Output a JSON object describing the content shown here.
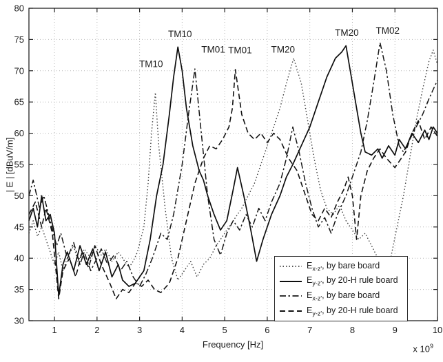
{
  "chart_data": {
    "type": "line",
    "title": "",
    "xlabel": "Frequency [Hz]",
    "x_multiplier_base": "x 10",
    "x_multiplier_exp": "9",
    "ylabel": "| E | [dBuV/m]",
    "xlim": [
      0.4,
      10
    ],
    "ylim": [
      30,
      80
    ],
    "xticks": [
      1,
      2,
      3,
      4,
      5,
      6,
      7,
      8,
      9,
      10
    ],
    "yticks": [
      30,
      35,
      40,
      45,
      50,
      55,
      60,
      65,
      70,
      75,
      80
    ],
    "grid": true,
    "legend_position": "bottom-right",
    "line_color": "#151515",
    "grid_color": "#b8b8b8",
    "annotations": [
      {
        "text": "TM10",
        "x": 3.27,
        "y": 70.6
      },
      {
        "text": "TM10",
        "x": 3.95,
        "y": 75.4
      },
      {
        "text": "TM01",
        "x": 4.73,
        "y": 72.9
      },
      {
        "text": "TM01",
        "x": 5.36,
        "y": 72.8
      },
      {
        "text": "TM20",
        "x": 6.37,
        "y": 72.9
      },
      {
        "text": "TM20",
        "x": 7.87,
        "y": 75.6
      },
      {
        "text": "TM02",
        "x": 8.83,
        "y": 75.9
      }
    ],
    "series": [
      {
        "name": "E_x-z', by bare board",
        "legend_pre": "E",
        "legend_sub": "x-z'",
        "legend_suffix": ", by bare board",
        "style": "dotted",
        "x": [
          0.4,
          0.5,
          0.6,
          0.7,
          0.85,
          1.0,
          1.1,
          1.2,
          1.3,
          1.45,
          1.55,
          1.7,
          1.85,
          1.95,
          2.1,
          2.2,
          2.35,
          2.5,
          2.6,
          2.75,
          2.85,
          2.95,
          3.1,
          3.2,
          3.28,
          3.37,
          3.45,
          3.6,
          3.75,
          3.9,
          4.05,
          4.2,
          4.35,
          4.5,
          4.65,
          4.8,
          4.95,
          5.1,
          5.25,
          5.4,
          5.55,
          5.7,
          5.85,
          6.0,
          6.15,
          6.3,
          6.45,
          6.62,
          6.8,
          6.95,
          7.1,
          7.25,
          7.4,
          7.55,
          7.7,
          7.85,
          8.0,
          8.15,
          8.3,
          8.45,
          8.6,
          8.75,
          8.9,
          9.05,
          9.2,
          9.35,
          9.5,
          9.65,
          9.8,
          9.9,
          10.0
        ],
        "y": [
          44,
          46,
          43.5,
          45,
          42,
          39,
          41,
          38,
          40,
          42,
          39.5,
          41.5,
          40,
          42,
          40.5,
          41.5,
          39.5,
          41,
          40,
          38.5,
          39.5,
          41,
          45,
          52,
          60,
          66.5,
          58,
          48,
          40,
          36.5,
          38,
          39.5,
          37,
          39,
          40,
          42,
          43.5,
          45,
          46.5,
          48,
          50,
          52,
          55,
          58,
          61,
          64,
          68,
          72,
          68,
          62,
          56,
          51,
          48,
          47,
          48.5,
          46,
          44.5,
          43,
          44,
          42,
          40,
          38,
          40,
          45,
          50,
          56,
          62,
          67,
          71.5,
          73.3,
          71
        ]
      },
      {
        "name": "E_y-z', by 20-H rule board",
        "legend_pre": "E",
        "legend_sub": "y-z'",
        "legend_suffix": ", by 20-H rule board",
        "style": "solid",
        "x": [
          0.4,
          0.5,
          0.6,
          0.7,
          0.8,
          0.9,
          1.0,
          1.1,
          1.2,
          1.3,
          1.45,
          1.6,
          1.75,
          1.9,
          2.05,
          2.2,
          2.35,
          2.5,
          2.6,
          2.75,
          2.9,
          3.1,
          3.25,
          3.4,
          3.55,
          3.7,
          3.8,
          3.9,
          4.0,
          4.1,
          4.25,
          4.4,
          4.5,
          4.6,
          4.75,
          4.9,
          5.05,
          5.2,
          5.3,
          5.45,
          5.6,
          5.75,
          5.9,
          6.1,
          6.3,
          6.45,
          6.6,
          6.8,
          7.0,
          7.2,
          7.4,
          7.6,
          7.75,
          7.85,
          7.95,
          8.1,
          8.2,
          8.3,
          8.45,
          8.6,
          8.7,
          8.85,
          9.0,
          9.1,
          9.25,
          9.4,
          9.55,
          9.7,
          9.8,
          9.9,
          10.0
        ],
        "y": [
          46,
          48,
          45,
          50,
          46,
          47,
          44,
          34,
          39,
          41,
          38,
          42,
          39,
          41.5,
          38,
          41,
          37,
          39,
          36.5,
          35.5,
          36,
          38,
          43,
          50,
          55,
          63,
          69,
          73.8,
          70,
          64,
          58,
          54,
          52.5,
          50,
          47,
          44.5,
          46,
          51,
          54.5,
          50,
          45,
          39.5,
          43,
          47,
          50,
          53,
          55,
          58,
          61,
          65,
          69,
          72,
          73,
          74,
          70,
          64,
          60,
          57,
          56.5,
          57.5,
          56,
          58,
          56.5,
          59,
          57.5,
          60,
          58.5,
          60.5,
          59,
          61,
          60
        ]
      },
      {
        "name": "E_x-z', by bare board",
        "legend_pre": "E",
        "legend_sub": "x-z'",
        "legend_suffix": ", by bare board",
        "style": "dashdot",
        "x": [
          0.4,
          0.5,
          0.65,
          0.75,
          0.9,
          1.05,
          1.15,
          1.3,
          1.45,
          1.6,
          1.7,
          1.85,
          2.0,
          2.1,
          2.25,
          2.4,
          2.55,
          2.7,
          2.85,
          3.0,
          3.15,
          3.3,
          3.5,
          3.65,
          3.8,
          4.0,
          4.15,
          4.3,
          4.45,
          4.6,
          4.75,
          4.9,
          5.05,
          5.2,
          5.35,
          5.5,
          5.65,
          5.8,
          5.95,
          6.1,
          6.3,
          6.45,
          6.6,
          6.75,
          6.9,
          7.05,
          7.2,
          7.35,
          7.5,
          7.65,
          7.85,
          8.05,
          8.2,
          8.35,
          8.5,
          8.65,
          8.8,
          8.95,
          9.1,
          9.2,
          9.35,
          9.5,
          9.65,
          9.8,
          9.9,
          10.0
        ],
        "y": [
          50,
          52.5,
          48,
          50,
          46,
          42,
          44,
          40,
          42.5,
          39,
          41,
          38,
          40,
          41.5,
          39,
          40.5,
          38,
          39.5,
          37,
          35.5,
          37.5,
          40,
          44,
          43,
          47,
          55,
          63,
          70.3,
          60,
          50,
          43,
          40.5,
          44,
          46,
          44.5,
          47,
          45,
          48,
          46,
          49,
          52,
          56,
          61,
          57,
          52,
          48,
          45,
          46.5,
          44,
          47,
          50,
          54,
          57,
          62,
          68,
          74.5,
          70,
          63,
          58,
          57,
          59,
          61,
          63,
          65.5,
          67,
          68.5
        ]
      },
      {
        "name": "E_y-z', by 20-H rule board",
        "legend_pre": "E",
        "legend_sub": "y-z'",
        "legend_suffix": ", by 20-H rule board",
        "style": "dashed",
        "x": [
          0.4,
          0.55,
          0.7,
          0.8,
          0.95,
          1.1,
          1.2,
          1.35,
          1.5,
          1.65,
          1.8,
          1.95,
          2.1,
          2.3,
          2.45,
          2.6,
          2.75,
          2.9,
          3.05,
          3.2,
          3.35,
          3.5,
          3.7,
          3.9,
          4.1,
          4.3,
          4.5,
          4.65,
          4.8,
          4.95,
          5.1,
          5.18,
          5.25,
          5.4,
          5.55,
          5.7,
          5.85,
          6.0,
          6.15,
          6.3,
          6.5,
          6.7,
          6.9,
          7.05,
          7.2,
          7.35,
          7.5,
          7.65,
          7.8,
          7.9,
          8.0,
          8.1,
          8.2,
          8.35,
          8.5,
          8.65,
          8.8,
          9.0,
          9.1,
          9.25,
          9.4,
          9.55,
          9.7,
          9.85,
          10.0
        ],
        "y": [
          47,
          49,
          45,
          48,
          44,
          33.5,
          38,
          40,
          37,
          41,
          38.5,
          42,
          39,
          36,
          33.5,
          35,
          34.5,
          36,
          35.5,
          36.5,
          35,
          34.5,
          36,
          40,
          46,
          52,
          56,
          58,
          57.5,
          59,
          61,
          64,
          70.2,
          63,
          60,
          59,
          60,
          58.5,
          60,
          59,
          56,
          54,
          50,
          47,
          46,
          48,
          46.5,
          49,
          51,
          53,
          50,
          43,
          50,
          54,
          56,
          57.5,
          56,
          54.5,
          55.5,
          57,
          60,
          62,
          59,
          61,
          59.5
        ]
      }
    ]
  }
}
